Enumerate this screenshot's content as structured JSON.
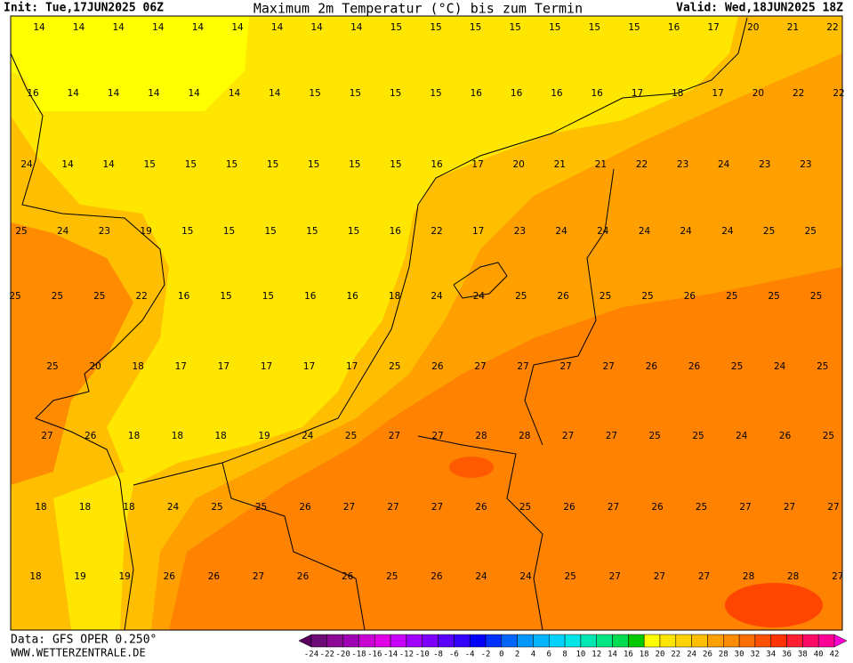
{
  "header": {
    "init": "Init: Tue,17JUN2025 06Z",
    "title": "Maximum 2m Temperatur (°C) bis zum Termin",
    "valid": "Valid: Wed,18JUN2025 18Z"
  },
  "grid": {
    "rows": [
      [
        14,
        14,
        14,
        14,
        14,
        14,
        14,
        14,
        14,
        15,
        15,
        15,
        15,
        15,
        15,
        15,
        16,
        17,
        20,
        21,
        22
      ],
      [
        16,
        14,
        14,
        14,
        14,
        14,
        14,
        15,
        15,
        15,
        15,
        16,
        16,
        16,
        16,
        17,
        18,
        17,
        20,
        22,
        22
      ],
      [
        24,
        14,
        14,
        15,
        15,
        15,
        15,
        15,
        15,
        15,
        16,
        17,
        20,
        21,
        21,
        22,
        23,
        24,
        23,
        23
      ],
      [
        25,
        24,
        23,
        19,
        15,
        15,
        15,
        15,
        15,
        16,
        22,
        17,
        23,
        24,
        24,
        24,
        24,
        24,
        25,
        25
      ],
      [
        25,
        25,
        25,
        22,
        16,
        15,
        15,
        16,
        16,
        18,
        24,
        24,
        25,
        26,
        25,
        25,
        26,
        25,
        25,
        25
      ],
      [
        25,
        20,
        18,
        17,
        17,
        17,
        17,
        17,
        25,
        26,
        27,
        27,
        27,
        27,
        26,
        26,
        25,
        24,
        25
      ],
      [
        27,
        26,
        18,
        18,
        18,
        19,
        24,
        25,
        27,
        27,
        28,
        28,
        27,
        27,
        25,
        25,
        24,
        26,
        25
      ],
      [
        18,
        18,
        18,
        24,
        25,
        25,
        26,
        27,
        27,
        27,
        26,
        25,
        26,
        27,
        26,
        25,
        27,
        27,
        27
      ],
      [
        18,
        19,
        19,
        26,
        26,
        27,
        26,
        26,
        25,
        26,
        24,
        24,
        25,
        27,
        27,
        27,
        28,
        28,
        27
      ]
    ]
  },
  "colorbar": {
    "labels": [
      -24,
      -22,
      -20,
      -18,
      -16,
      -14,
      -12,
      -10,
      -8,
      -6,
      -4,
      -2,
      0,
      2,
      4,
      6,
      8,
      10,
      12,
      14,
      16,
      18,
      20,
      22,
      24,
      26,
      28,
      30,
      32,
      34,
      36,
      38,
      40,
      42
    ],
    "colors": [
      "#5a0060",
      "#6e0a78",
      "#8c0a96",
      "#a000b4",
      "#c800d2",
      "#e100e6",
      "#c800ff",
      "#a000ff",
      "#7d00ff",
      "#5a00ff",
      "#3200ff",
      "#0000ff",
      "#0032ff",
      "#0064ff",
      "#0096ff",
      "#00b4ff",
      "#00d2ff",
      "#00e6e6",
      "#00e6b4",
      "#00e682",
      "#00dc50",
      "#00c800",
      "#ffff00",
      "#ffe600",
      "#ffd200",
      "#ffbe00",
      "#ffa000",
      "#ff8c00",
      "#ff6e00",
      "#ff5000",
      "#ff3200",
      "#ff1e32",
      "#ff0a64",
      "#ff0096",
      "#ff00d2"
    ]
  },
  "footer": {
    "data": "Data: GFS OPER 0.250°",
    "site": "WWW.WETTERZENTRALE.DE"
  }
}
